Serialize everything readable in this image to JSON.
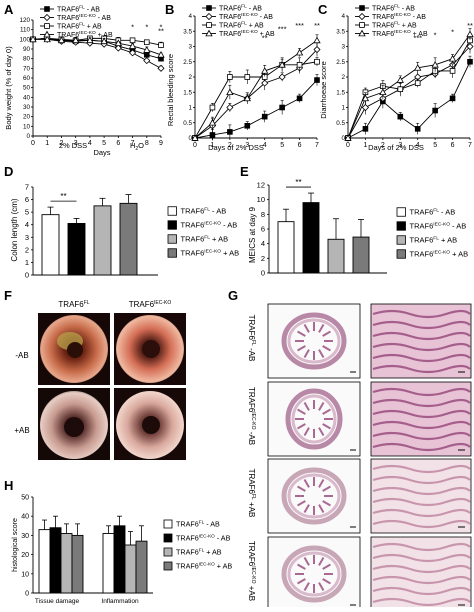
{
  "colors": {
    "wt_ab": "#000000",
    "ko_ab": "#000000",
    "wt_ab_plus": "#000000",
    "ko_ab_plus": "#000000",
    "bar_wt_ab": "#ffffff",
    "bar_ko_ab": "#000000",
    "bar_wt_abp": "#b5b5b5",
    "bar_ko_abp": "#7a7a7a"
  },
  "legend": {
    "wt_ab": "TRAF6FL - AB",
    "ko_ab": "TRAF6IEC-KO - AB",
    "wt_abp": "TRAF6FL + AB",
    "ko_abp": "TRAF6IEC-KO + AB",
    "base_wt": "TRAF6",
    "sup_wt": "FL",
    "sup_ko": "IEC-KO",
    "suffix_minus": " - AB",
    "suffix_plus": " + AB"
  },
  "panels": {
    "A": {
      "letter": "A",
      "ylabel": "Body weight (% of day 0)",
      "xlabel": "Days",
      "note_dss": "2% DSS",
      "note_h2o": "H2O"
    },
    "B": {
      "letter": "B",
      "ylabel": "Rectal bleeding score",
      "xlabel": "Days of 2% DSS"
    },
    "C": {
      "letter": "C",
      "ylabel": "Diarrhoeae score",
      "xlabel": "Days of 2% DSS"
    },
    "D": {
      "letter": "D",
      "ylabel": "Colon length (cm)",
      "sig": "**"
    },
    "E": {
      "letter": "E",
      "ylabel": "MEICS at day 9",
      "sig": "**"
    },
    "F": {
      "letter": "F",
      "col1": "TRAF6FL",
      "col2": "TRAF6IEC-KO",
      "row1": "-AB",
      "row2": "+AB"
    },
    "G": {
      "letter": "G",
      "rows": [
        "TRAF6FL -AB",
        "TRAF6IEC-KO -AB",
        "TRAF6FL +AB",
        "TRAF6IEC-KO +AB"
      ]
    },
    "H": {
      "letter": "H",
      "ylabel": "histological score",
      "cat1": "Tissue damage",
      "cat2": "Inflammation"
    }
  },
  "chart_data": [
    {
      "id": "A",
      "type": "line",
      "x": [
        0,
        1,
        2,
        3,
        4,
        5,
        6,
        7,
        8,
        9
      ],
      "ylim": [
        0,
        120
      ],
      "yticks": [
        0,
        10,
        20,
        30,
        40,
        50,
        60,
        70,
        80,
        90,
        100,
        110,
        120
      ],
      "xlabel": "Days",
      "ylabel": "Body weight (% of day 0)",
      "annotations": [
        "*",
        "*",
        "*",
        "**"
      ],
      "series": [
        {
          "name": "TRAF6FL - AB",
          "values": [
            100,
            101,
            99,
            98,
            99,
            98,
            93,
            89,
            84,
            80
          ]
        },
        {
          "name": "TRAF6IEC-KO - AB",
          "values": [
            100,
            100,
            98,
            97,
            96,
            95,
            91,
            86,
            78,
            70
          ]
        },
        {
          "name": "TRAF6FL + AB",
          "values": [
            100,
            101,
            100,
            99,
            101,
            101,
            99,
            99,
            97,
            94
          ]
        },
        {
          "name": "TRAF6IEC-KO + AB",
          "values": [
            100,
            100,
            99,
            99,
            99,
            98,
            96,
            93,
            89,
            84
          ]
        }
      ]
    },
    {
      "id": "B",
      "type": "line",
      "x": [
        0,
        1,
        2,
        3,
        4,
        5,
        6,
        7
      ],
      "ylim": [
        0,
        4
      ],
      "yticks": [
        0,
        0.5,
        1,
        1.5,
        2,
        2.5,
        3,
        3.5,
        4
      ],
      "xlabel": "Days of 2% DSS",
      "ylabel": "Rectal bleeding score",
      "annotations": [
        "**",
        "***",
        "***",
        "**"
      ],
      "series": [
        {
          "name": "TRAF6FL - AB",
          "values": [
            0,
            0.1,
            0.2,
            0.4,
            0.7,
            1.0,
            1.3,
            1.9
          ]
        },
        {
          "name": "TRAF6IEC-KO - AB",
          "values": [
            0,
            0.4,
            1.0,
            1.3,
            1.8,
            2.0,
            2.3,
            2.9
          ]
        },
        {
          "name": "TRAF6FL + AB",
          "values": [
            0,
            1.0,
            2.0,
            2.0,
            2.0,
            2.4,
            2.4,
            2.5
          ]
        },
        {
          "name": "TRAF6IEC-KO + AB",
          "values": [
            0,
            0.5,
            1.5,
            1.3,
            2.2,
            2.4,
            2.8,
            3.2
          ]
        }
      ]
    },
    {
      "id": "C",
      "type": "line",
      "x": [
        0,
        1,
        2,
        3,
        4,
        5,
        6,
        7
      ],
      "ylim": [
        0,
        4
      ],
      "yticks": [
        0,
        0.5,
        1,
        1.5,
        2,
        2.5,
        3,
        3.5,
        4
      ],
      "xlabel": "Days of 2% DSS",
      "ylabel": "Diarrhoeae score",
      "annotations": [
        "***",
        "*",
        "*",
        "**"
      ],
      "series": [
        {
          "name": "TRAF6FL - AB",
          "values": [
            0,
            0.3,
            1.2,
            0.7,
            0.3,
            0.9,
            1.3,
            2.5
          ]
        },
        {
          "name": "TRAF6IEC-KO - AB",
          "values": [
            0,
            1.0,
            1.3,
            1.6,
            2.0,
            2.1,
            2.4,
            3.0
          ]
        },
        {
          "name": "TRAF6FL + AB",
          "values": [
            0,
            1.5,
            1.7,
            1.6,
            1.8,
            2.2,
            2.2,
            3.2
          ]
        },
        {
          "name": "TRAF6IEC-KO + AB",
          "values": [
            0,
            1.3,
            1.5,
            1.9,
            2.3,
            2.4,
            2.6,
            3.4
          ]
        }
      ]
    },
    {
      "id": "D",
      "type": "bar",
      "categories": [
        "TRAF6FL - AB",
        "TRAF6IEC-KO - AB",
        "TRAF6FL + AB",
        "TRAF6IEC-KO + AB"
      ],
      "values": [
        4.8,
        4.1,
        5.5,
        5.7
      ],
      "errors": [
        0.6,
        0.4,
        0.6,
        0.7
      ],
      "ylim": [
        0,
        7
      ],
      "yticks": [
        0,
        1,
        2,
        3,
        4,
        5,
        6,
        7
      ],
      "ylabel": "Colon length (cm)",
      "annotations": [
        "**"
      ]
    },
    {
      "id": "E",
      "type": "bar",
      "categories": [
        "TRAF6FL - AB",
        "TRAF6IEC-KO - AB",
        "TRAF6FL + AB",
        "TRAF6IEC-KO + AB"
      ],
      "values": [
        7.0,
        9.6,
        4.6,
        4.9
      ],
      "errors": [
        1.7,
        1.3,
        2.8,
        2.4
      ],
      "ylim": [
        0,
        12
      ],
      "yticks": [
        0,
        2,
        4,
        6,
        8,
        10,
        12
      ],
      "ylabel": "MEICS at day 9",
      "annotations": [
        "**"
      ]
    },
    {
      "id": "H",
      "type": "bar",
      "categories": [
        "Tissue damage",
        "Inflammation"
      ],
      "series": [
        {
          "name": "TRAF6FL - AB",
          "values": [
            33,
            31
          ]
        },
        {
          "name": "TRAF6IEC-KO - AB",
          "values": [
            34,
            35
          ]
        },
        {
          "name": "TRAF6FL + AB",
          "values": [
            31,
            25
          ]
        },
        {
          "name": "TRAF6IEC-KO + AB",
          "values": [
            30,
            27
          ]
        }
      ],
      "errors": [
        [
          5,
          4
        ],
        [
          6,
          5
        ],
        [
          5,
          7
        ],
        [
          6,
          8
        ]
      ],
      "ylim": [
        0,
        50
      ],
      "yticks": [
        0,
        10,
        20,
        30,
        40,
        50
      ],
      "ylabel": "histological score"
    }
  ]
}
